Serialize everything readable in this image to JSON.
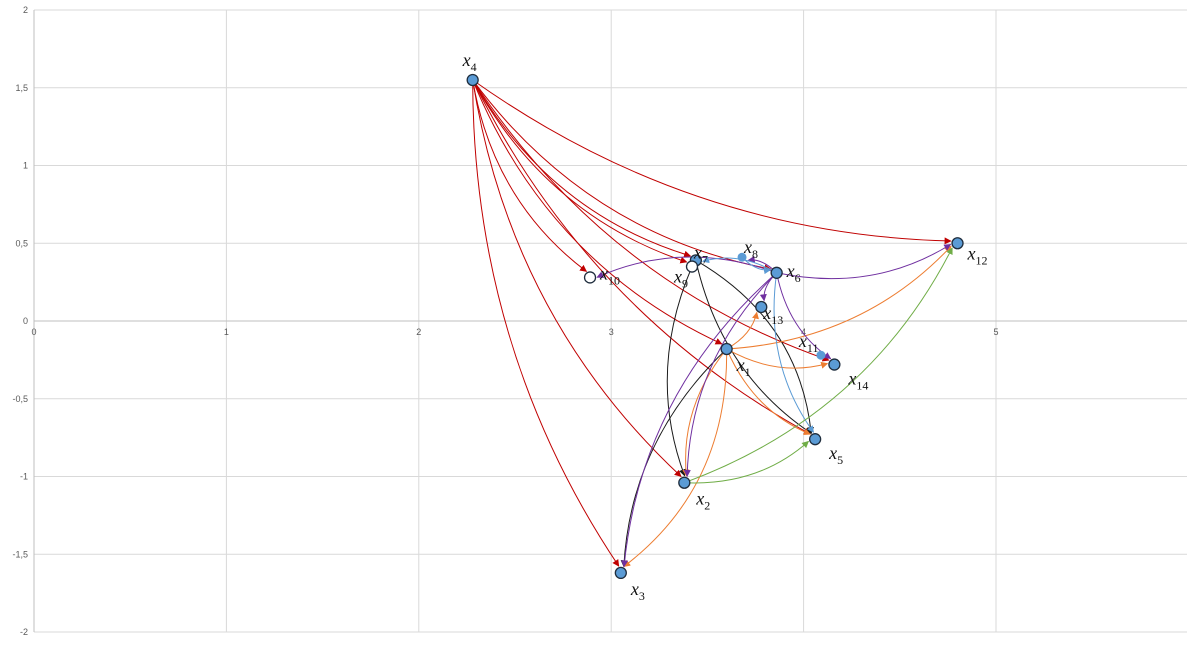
{
  "chart_data": {
    "type": "scatter",
    "title": "",
    "xlabel": "",
    "ylabel": "",
    "xlim": [
      0,
      6
    ],
    "ylim": [
      -2,
      2
    ],
    "grid": true,
    "x_ticks": [
      "0",
      "1",
      "2",
      "3",
      "4",
      "5"
    ],
    "y_ticks": [
      "2",
      "1,5",
      "1",
      "0,5",
      "0",
      "-0,5",
      "-1",
      "-1,5",
      "-2"
    ],
    "colors": {
      "red": "#c00000",
      "black": "#1a1a1a",
      "orange": "#ed7d31",
      "purple": "#7030a0",
      "lightblue": "#5b9bd5",
      "green": "#70ad47",
      "node_fill": "#5b9bd5"
    },
    "nodes": [
      {
        "id": "x1",
        "main": "x",
        "sub": "1",
        "x": 3.6,
        "y": -0.18,
        "style": "filled"
      },
      {
        "id": "x2",
        "main": "x",
        "sub": "2",
        "x": 3.38,
        "y": -1.04,
        "style": "filled"
      },
      {
        "id": "x3",
        "main": "x",
        "sub": "3",
        "x": 3.05,
        "y": -1.62,
        "style": "filled"
      },
      {
        "id": "x4",
        "main": "x",
        "sub": "4",
        "x": 2.28,
        "y": 1.55,
        "style": "filled"
      },
      {
        "id": "x5",
        "main": "x",
        "sub": "5",
        "x": 4.06,
        "y": -0.76,
        "style": "filled"
      },
      {
        "id": "x6",
        "main": "x",
        "sub": "6",
        "x": 3.86,
        "y": 0.31,
        "style": "filled"
      },
      {
        "id": "x7",
        "main": "x",
        "sub": "7",
        "x": 3.44,
        "y": 0.39,
        "style": "filled"
      },
      {
        "id": "x8",
        "main": "x",
        "sub": "8",
        "x": 3.68,
        "y": 0.41,
        "style": "dot"
      },
      {
        "id": "x9",
        "main": "x",
        "sub": "9",
        "x": 3.42,
        "y": 0.35,
        "style": "open"
      },
      {
        "id": "x10",
        "main": "x",
        "sub": "10",
        "x": 2.89,
        "y": 0.28,
        "style": "open"
      },
      {
        "id": "x11",
        "main": "x",
        "sub": "11",
        "x": 4.09,
        "y": -0.22,
        "style": "dot"
      },
      {
        "id": "x12",
        "main": "x",
        "sub": "12",
        "x": 4.8,
        "y": 0.5,
        "style": "filled"
      },
      {
        "id": "x13",
        "main": "x",
        "sub": "13",
        "x": 3.78,
        "y": 0.09,
        "style": "filled"
      },
      {
        "id": "x14",
        "main": "x",
        "sub": "14",
        "x": 4.16,
        "y": -0.28,
        "style": "filled"
      }
    ],
    "edges": [
      {
        "from": "x4",
        "to": "x12",
        "color": "red"
      },
      {
        "from": "x4",
        "to": "x14",
        "color": "red"
      },
      {
        "from": "x4",
        "to": "x7",
        "color": "red"
      },
      {
        "from": "x4",
        "to": "x9",
        "color": "red"
      },
      {
        "from": "x4",
        "to": "x6",
        "color": "red"
      },
      {
        "from": "x4",
        "to": "x10",
        "color": "red"
      },
      {
        "from": "x4",
        "to": "x1",
        "color": "red"
      },
      {
        "from": "x4",
        "to": "x5",
        "color": "red"
      },
      {
        "from": "x4",
        "to": "x2",
        "color": "red"
      },
      {
        "from": "x4",
        "to": "x3",
        "color": "red"
      },
      {
        "from": "x9",
        "to": "x2",
        "color": "black"
      },
      {
        "from": "x7",
        "to": "x5",
        "color": "black"
      },
      {
        "from": "x1",
        "to": "x3",
        "color": "black"
      },
      {
        "from": "x7",
        "to": "x5",
        "color": "black"
      },
      {
        "from": "x1",
        "to": "x2",
        "color": "orange"
      },
      {
        "from": "x1",
        "to": "x3",
        "color": "orange"
      },
      {
        "from": "x1",
        "to": "x14",
        "color": "orange"
      },
      {
        "from": "x1",
        "to": "x13",
        "color": "orange"
      },
      {
        "from": "x1",
        "to": "x12",
        "color": "orange"
      },
      {
        "from": "x1",
        "to": "x5",
        "color": "orange"
      },
      {
        "from": "x6",
        "to": "x10",
        "color": "purple"
      },
      {
        "from": "x6",
        "to": "x12",
        "color": "purple"
      },
      {
        "from": "x6",
        "to": "x8",
        "color": "purple"
      },
      {
        "from": "x6",
        "to": "x13",
        "color": "purple"
      },
      {
        "from": "x6",
        "to": "x14",
        "color": "purple"
      },
      {
        "from": "x6",
        "to": "x2",
        "color": "purple"
      },
      {
        "from": "x6",
        "to": "x3",
        "color": "purple"
      },
      {
        "from": "x6",
        "to": "x7",
        "color": "lightblue"
      },
      {
        "from": "x8",
        "to": "x6",
        "color": "lightblue"
      },
      {
        "from": "x6",
        "to": "x5",
        "color": "lightblue"
      },
      {
        "from": "x2",
        "to": "x12",
        "color": "green"
      },
      {
        "from": "x2",
        "to": "x5",
        "color": "green"
      }
    ]
  }
}
